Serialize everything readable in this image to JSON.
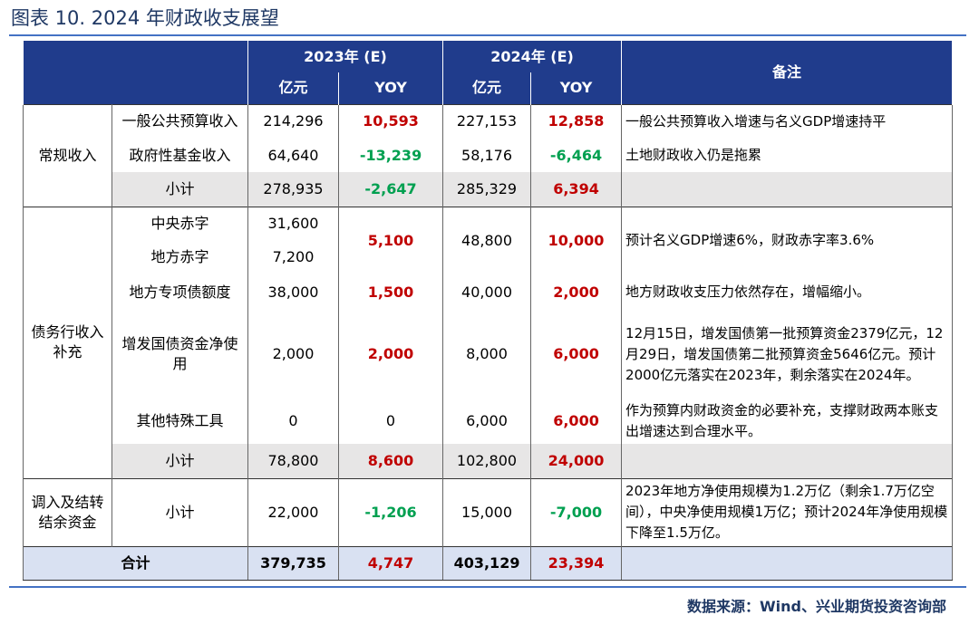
{
  "header": {
    "title": "图表 10. 2024 年财政收支展望",
    "source": "数据来源：Wind、兴业期货投资咨询部"
  },
  "table": {
    "columns": [
      "2023年 (E)",
      "2024年 (E)",
      "备注"
    ],
    "units": [
      "亿元",
      "YOY",
      "亿元",
      "YOY"
    ],
    "rows": [
      {
        "group": "常规收入",
        "item": "一般公共预算收入",
        "v2023": "214,296",
        "yoy2023": "10,593",
        "v2024": "227,153",
        "yoy2024": "12,858",
        "note": "一般公共预算收入增速与名义GDP增速持平"
      },
      {
        "item": "政府性基金收入",
        "v2023": "64,640",
        "yoy2023": "-13,239",
        "v2024": "58,176",
        "yoy2024": "-6,464",
        "note": "土地财政收入仍是拖累"
      },
      {
        "item": "小计",
        "v2023": "278,935",
        "yoy2023": "-2,647",
        "v2024": "285,329",
        "yoy2024": "6,394"
      },
      {
        "group": "债务行收入补充",
        "item": "中央赤字",
        "v2023": "31,600",
        "yoy2023": "5,100",
        "v2024": "48,800",
        "yoy2024": "10,000",
        "note": "预计名义GDP增速6%，财政赤字率3.6%"
      },
      {
        "item": "地方赤字",
        "v2023": "7,200"
      },
      {
        "item": "地方专项债额度",
        "v2023": "38,000",
        "yoy2023": "1,500",
        "v2024": "40,000",
        "yoy2024": "2,000",
        "note": "地方财政收支压力依然存在，增幅缩小。"
      },
      {
        "item": "增发国债资金净使用",
        "v2023": "2,000",
        "yoy2023": "2,000",
        "v2024": "8,000",
        "yoy2024": "6,000",
        "note": "12月15日，增发国债第一批预算资金2379亿元，12月29日，增发国债第二批预算资金5646亿元。预计2000亿元落实在2023年，剩余落实在2024年。"
      },
      {
        "item": "其他特殊工具",
        "v2023": "0",
        "yoy2023": "0",
        "v2024": "6,000",
        "yoy2024": "6,000",
        "note": "作为预算内财政资金的必要补充，支撑财政两本账支出增速达到合理水平。"
      },
      {
        "item": "小计",
        "v2023": "78,800",
        "yoy2023": "8,600",
        "v2024": "102,800",
        "yoy2024": "24,000"
      },
      {
        "group": "调入及结转结余资金",
        "item": "小计",
        "v2023": "22,000",
        "yoy2023": "-1,206",
        "v2024": "15,000",
        "yoy2024": "-7,000",
        "note": "2023年地方净使用规模为1.2万亿（剩余1.7万亿空间），中央净使用规模1万亿；预计2024年净使用规模下降至1.5万亿。"
      },
      {
        "item": "合计",
        "v2023": "379,735",
        "yoy2023": "4,747",
        "v2024": "403,129",
        "yoy2024": "23,394"
      }
    ]
  }
}
